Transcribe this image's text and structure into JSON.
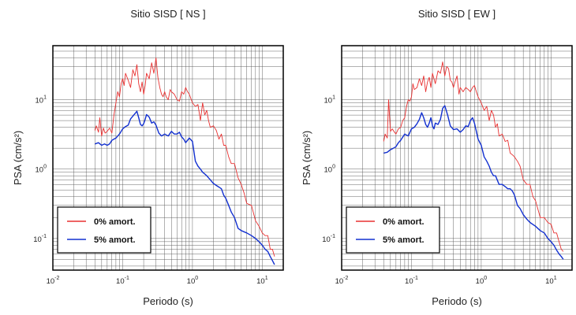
{
  "chart_data": [
    {
      "type": "line",
      "title": "Sitio SISD [ NS ]",
      "xlabel": "Periodo (s)",
      "ylabel": "PSA (cm/s²)",
      "x_scale": "log",
      "y_scale": "log",
      "xlim": [
        0.01,
        20
      ],
      "ylim": [
        0.035,
        60
      ],
      "x_ticks": [
        {
          "value": 0.01,
          "base": "10",
          "exp": "-2"
        },
        {
          "value": 0.1,
          "base": "10",
          "exp": "-1"
        },
        {
          "value": 1,
          "base": "10",
          "exp": "0"
        },
        {
          "value": 10,
          "base": "10",
          "exp": "1"
        }
      ],
      "y_ticks": [
        {
          "value": 0.1,
          "base": "10",
          "exp": "-1"
        },
        {
          "value": 1,
          "base": "10",
          "exp": "0"
        },
        {
          "value": 10,
          "base": "10",
          "exp": "1"
        }
      ],
      "grid": true,
      "legend": "bottom-left",
      "series": [
        {
          "name": "0% amort.",
          "color": "#e83030",
          "x": [
            0.04,
            0.042,
            0.045,
            0.047,
            0.05,
            0.053,
            0.056,
            0.06,
            0.065,
            0.07,
            0.075,
            0.08,
            0.085,
            0.09,
            0.095,
            0.1,
            0.105,
            0.11,
            0.12,
            0.13,
            0.14,
            0.15,
            0.16,
            0.17,
            0.18,
            0.19,
            0.2,
            0.21,
            0.22,
            0.24,
            0.26,
            0.28,
            0.3,
            0.32,
            0.34,
            0.36,
            0.38,
            0.4,
            0.42,
            0.45,
            0.48,
            0.5,
            0.55,
            0.6,
            0.65,
            0.7,
            0.75,
            0.8,
            0.85,
            0.9,
            1.0,
            1.1,
            1.2,
            1.3,
            1.4,
            1.5,
            1.6,
            1.7,
            1.8,
            2.0,
            2.2,
            2.4,
            2.6,
            2.8,
            3.0,
            3.3,
            3.6,
            4.0,
            4.5,
            5.0,
            5.5,
            6.0,
            7.0,
            8.0,
            9.0,
            10,
            11,
            12,
            13,
            14,
            15
          ],
          "y": [
            3.6,
            4.2,
            3.4,
            5.5,
            3.0,
            3.9,
            3.3,
            3.5,
            3.9,
            3.3,
            6.0,
            9.0,
            13,
            11,
            17,
            20,
            16,
            24,
            19,
            15,
            27,
            22,
            32,
            17,
            13,
            18,
            12,
            16,
            24,
            20,
            34,
            24,
            40,
            21,
            15,
            12,
            11,
            13,
            11,
            10,
            14,
            13,
            12,
            10,
            9.5,
            13,
            12,
            15,
            13,
            12,
            9,
            8,
            8.5,
            5,
            9,
            6,
            7,
            5,
            4,
            4.2,
            3.6,
            2.7,
            3.2,
            2.2,
            2.2,
            1.5,
            1.2,
            1.2,
            0.75,
            0.6,
            0.45,
            0.32,
            0.3,
            0.18,
            0.15,
            0.12,
            0.11,
            0.11,
            0.07,
            0.07,
            0.055
          ]
        },
        {
          "name": "5% amort.",
          "color": "#1230d0",
          "x": [
            0.04,
            0.045,
            0.05,
            0.055,
            0.06,
            0.065,
            0.07,
            0.08,
            0.09,
            0.1,
            0.11,
            0.12,
            0.13,
            0.14,
            0.15,
            0.16,
            0.17,
            0.18,
            0.19,
            0.2,
            0.21,
            0.22,
            0.24,
            0.26,
            0.28,
            0.3,
            0.33,
            0.36,
            0.4,
            0.45,
            0.5,
            0.55,
            0.6,
            0.65,
            0.7,
            0.75,
            0.8,
            0.9,
            1.0,
            1.1,
            1.2,
            1.3,
            1.4,
            1.5,
            1.6,
            1.8,
            2.0,
            2.2,
            2.4,
            2.6,
            2.8,
            3.0,
            3.3,
            3.6,
            4.0,
            4.5,
            5.0,
            6.0,
            7.0,
            8.0,
            9.0,
            10,
            11,
            12,
            13,
            14,
            15
          ],
          "y": [
            2.3,
            2.4,
            2.2,
            2.3,
            2.2,
            2.3,
            2.6,
            2.8,
            3.2,
            3.8,
            4.1,
            4.3,
            5.3,
            5.8,
            6.3,
            6.8,
            5.5,
            4.4,
            4.2,
            4.5,
            5.2,
            6.1,
            5.6,
            4.6,
            4.8,
            4.3,
            3.3,
            3.0,
            3.2,
            3.0,
            3.5,
            3.2,
            3.2,
            3.4,
            2.9,
            2.7,
            2.4,
            2.8,
            2.5,
            1.3,
            1.1,
            1.0,
            0.9,
            0.85,
            0.8,
            0.7,
            0.62,
            0.58,
            0.55,
            0.52,
            0.42,
            0.38,
            0.3,
            0.24,
            0.2,
            0.14,
            0.13,
            0.12,
            0.11,
            0.1,
            0.09,
            0.08,
            0.07,
            0.065,
            0.055,
            0.048,
            0.042
          ]
        }
      ]
    },
    {
      "type": "line",
      "title": "Sitio SISD [ EW ]",
      "xlabel": "Periodo (s)",
      "ylabel": "PSA (cm/s²)",
      "x_scale": "log",
      "y_scale": "log",
      "xlim": [
        0.01,
        20
      ],
      "ylim": [
        0.035,
        60
      ],
      "x_ticks": [
        {
          "value": 0.01,
          "base": "10",
          "exp": "-2"
        },
        {
          "value": 0.1,
          "base": "10",
          "exp": "-1"
        },
        {
          "value": 1,
          "base": "10",
          "exp": "0"
        },
        {
          "value": 10,
          "base": "10",
          "exp": "1"
        }
      ],
      "y_ticks": [
        {
          "value": 0.1,
          "base": "10",
          "exp": "-1"
        },
        {
          "value": 1,
          "base": "10",
          "exp": "0"
        },
        {
          "value": 10,
          "base": "10",
          "exp": "1"
        }
      ],
      "grid": true,
      "legend": "bottom-left",
      "series": [
        {
          "name": "0% amort.",
          "color": "#e83030",
          "x": [
            0.04,
            0.042,
            0.045,
            0.047,
            0.05,
            0.053,
            0.056,
            0.06,
            0.065,
            0.07,
            0.075,
            0.08,
            0.085,
            0.09,
            0.095,
            0.1,
            0.105,
            0.11,
            0.12,
            0.13,
            0.14,
            0.15,
            0.16,
            0.17,
            0.18,
            0.19,
            0.2,
            0.21,
            0.22,
            0.24,
            0.26,
            0.28,
            0.3,
            0.32,
            0.34,
            0.36,
            0.38,
            0.4,
            0.42,
            0.45,
            0.48,
            0.5,
            0.55,
            0.6,
            0.65,
            0.7,
            0.75,
            0.8,
            0.85,
            0.9,
            1.0,
            1.1,
            1.2,
            1.3,
            1.4,
            1.5,
            1.6,
            1.7,
            1.8,
            2.0,
            2.2,
            2.4,
            2.6,
            2.8,
            3.0,
            3.3,
            3.6,
            4.0,
            4.5,
            5.0,
            5.5,
            6.0,
            7.0,
            8.0,
            9.0,
            10,
            11,
            12,
            13,
            14,
            15
          ],
          "y": [
            2.5,
            3.2,
            2.8,
            10,
            3.5,
            3.8,
            3.5,
            3.2,
            3.8,
            4.0,
            5.0,
            5.5,
            8.0,
            10,
            9.5,
            11,
            17,
            14,
            15,
            20,
            16,
            22,
            13,
            18,
            21,
            15,
            24,
            20,
            17,
            26,
            24,
            35,
            22,
            30,
            28,
            19,
            18,
            15,
            18,
            22,
            12,
            15,
            13,
            15,
            14,
            13,
            15,
            16,
            13,
            11,
            9,
            7,
            8,
            5,
            7,
            6,
            4,
            4.5,
            3.0,
            3.2,
            2.5,
            2.6,
            1.7,
            1.6,
            1.5,
            1.3,
            1.1,
            0.7,
            0.6,
            0.6,
            0.4,
            0.35,
            0.2,
            0.2,
            0.17,
            0.16,
            0.12,
            0.12,
            0.09,
            0.07,
            0.065
          ]
        },
        {
          "name": "5% amort.",
          "color": "#1230d0",
          "x": [
            0.04,
            0.045,
            0.05,
            0.055,
            0.06,
            0.065,
            0.07,
            0.08,
            0.09,
            0.1,
            0.11,
            0.12,
            0.13,
            0.14,
            0.15,
            0.16,
            0.17,
            0.18,
            0.19,
            0.2,
            0.21,
            0.22,
            0.24,
            0.26,
            0.28,
            0.3,
            0.33,
            0.36,
            0.4,
            0.45,
            0.5,
            0.55,
            0.6,
            0.65,
            0.7,
            0.75,
            0.8,
            0.9,
            1.0,
            1.1,
            1.2,
            1.3,
            1.4,
            1.5,
            1.6,
            1.8,
            2.0,
            2.2,
            2.4,
            2.6,
            2.8,
            3.0,
            3.3,
            3.6,
            4.0,
            4.5,
            5.0,
            6.0,
            7.0,
            8.0,
            9.0,
            10,
            11,
            12,
            13,
            14,
            15
          ],
          "y": [
            1.7,
            1.75,
            1.9,
            2.0,
            2.1,
            2.4,
            2.6,
            3.2,
            3.0,
            3.8,
            4.0,
            4.5,
            5.2,
            6.5,
            5.5,
            4.4,
            4.0,
            4.6,
            5.5,
            4.2,
            3.8,
            4.6,
            4.4,
            5.2,
            7.5,
            8.2,
            6.0,
            4.2,
            3.7,
            3.8,
            3.4,
            3.7,
            4.2,
            4.1,
            5.0,
            5.5,
            4.6,
            2.7,
            2.2,
            1.5,
            1.3,
            1.1,
            0.9,
            0.8,
            0.8,
            0.6,
            0.6,
            0.56,
            0.52,
            0.52,
            0.48,
            0.42,
            0.3,
            0.27,
            0.22,
            0.19,
            0.17,
            0.15,
            0.13,
            0.12,
            0.1,
            0.09,
            0.08,
            0.068,
            0.06,
            0.055,
            0.05
          ]
        }
      ]
    }
  ]
}
